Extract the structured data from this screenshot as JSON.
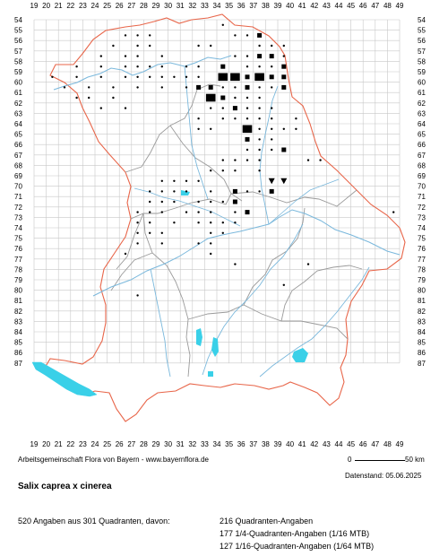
{
  "map": {
    "columns": [
      "19",
      "20",
      "21",
      "22",
      "23",
      "24",
      "25",
      "26",
      "27",
      "28",
      "29",
      "30",
      "31",
      "32",
      "33",
      "34",
      "35",
      "36",
      "37",
      "38",
      "39",
      "40",
      "41",
      "42",
      "43",
      "44",
      "45",
      "46",
      "47",
      "48",
      "49"
    ],
    "rows": [
      "54",
      "55",
      "56",
      "57",
      "58",
      "59",
      "60",
      "61",
      "62",
      "63",
      "64",
      "65",
      "66",
      "67",
      "68",
      "69",
      "70",
      "71",
      "72",
      "73",
      "74",
      "75",
      "76",
      "77",
      "78",
      "79",
      "80",
      "81",
      "82",
      "83",
      "84",
      "85",
      "86",
      "87"
    ],
    "colors": {
      "grid": "#c8c8c8",
      "state_border": "#e8664a",
      "district_border": "#9a9a9a",
      "rivers": "#7ab8dc",
      "lakes": "#3ad0e8",
      "symbols": "#000000"
    },
    "legend_symbols": {
      "quadrant": "large-square",
      "quarter_mtb": "small-square",
      "sixteenth_mtb": "dot",
      "historic": "triangle"
    },
    "records": {
      "dots": [
        [
          26,
          55
        ],
        [
          27,
          55
        ],
        [
          28,
          55
        ],
        [
          25,
          56
        ],
        [
          27,
          56
        ],
        [
          28,
          56
        ],
        [
          32,
          56
        ],
        [
          33,
          56
        ],
        [
          24,
          57
        ],
        [
          26,
          57
        ],
        [
          27,
          57
        ],
        [
          29,
          57
        ],
        [
          22,
          58
        ],
        [
          24,
          58
        ],
        [
          26,
          58
        ],
        [
          27,
          58
        ],
        [
          28,
          58
        ],
        [
          29,
          58
        ],
        [
          31,
          58
        ],
        [
          32,
          58
        ],
        [
          20,
          59
        ],
        [
          22,
          59
        ],
        [
          24,
          59
        ],
        [
          26,
          59
        ],
        [
          27,
          59
        ],
        [
          28,
          59
        ],
        [
          29,
          59
        ],
        [
          30,
          59
        ],
        [
          31,
          59
        ],
        [
          32,
          59
        ],
        [
          23,
          60
        ],
        [
          25,
          60
        ],
        [
          27,
          60
        ],
        [
          29,
          60
        ],
        [
          31,
          60
        ],
        [
          23,
          61
        ],
        [
          25,
          61
        ],
        [
          26,
          62
        ],
        [
          24,
          62
        ],
        [
          32,
          63
        ],
        [
          32,
          64
        ],
        [
          33,
          64
        ],
        [
          34,
          63
        ],
        [
          35,
          63
        ],
        [
          36,
          63
        ],
        [
          37,
          63
        ],
        [
          38,
          63
        ],
        [
          37,
          64
        ],
        [
          38,
          64
        ],
        [
          39,
          64
        ],
        [
          40,
          63
        ],
        [
          40,
          64
        ],
        [
          36,
          65
        ],
        [
          37,
          65
        ],
        [
          38,
          65
        ],
        [
          36,
          66
        ],
        [
          37,
          66
        ],
        [
          38,
          66
        ],
        [
          36,
          67
        ],
        [
          37,
          67
        ],
        [
          34,
          67
        ],
        [
          35,
          67
        ],
        [
          41,
          67
        ],
        [
          42,
          67
        ],
        [
          33,
          68
        ],
        [
          34,
          68
        ],
        [
          35,
          68
        ],
        [
          37,
          68
        ],
        [
          29,
          69
        ],
        [
          30,
          69
        ],
        [
          31,
          69
        ],
        [
          32,
          69
        ],
        [
          28,
          70
        ],
        [
          29,
          70
        ],
        [
          30,
          70
        ],
        [
          31,
          70
        ],
        [
          33,
          70
        ],
        [
          36,
          70
        ],
        [
          37,
          70
        ],
        [
          28,
          71
        ],
        [
          29,
          71
        ],
        [
          30,
          71
        ],
        [
          32,
          71
        ],
        [
          33,
          71
        ],
        [
          34,
          71
        ],
        [
          27,
          72
        ],
        [
          28,
          72
        ],
        [
          29,
          72
        ],
        [
          31,
          72
        ],
        [
          32,
          72
        ],
        [
          33,
          72
        ],
        [
          35,
          72
        ],
        [
          27,
          73
        ],
        [
          28,
          73
        ],
        [
          30,
          73
        ],
        [
          32,
          73
        ],
        [
          33,
          73
        ],
        [
          34,
          73
        ],
        [
          35,
          73
        ],
        [
          27,
          74
        ],
        [
          28,
          74
        ],
        [
          29,
          74
        ],
        [
          33,
          74
        ],
        [
          34,
          74
        ],
        [
          27,
          75
        ],
        [
          29,
          75
        ],
        [
          32,
          75
        ],
        [
          33,
          75
        ],
        [
          26,
          76
        ],
        [
          33,
          76
        ],
        [
          35,
          77
        ],
        [
          41,
          77
        ],
        [
          27,
          80
        ],
        [
          39,
          79
        ],
        [
          48,
          72
        ],
        [
          22,
          61
        ],
        [
          21,
          60
        ],
        [
          34,
          54
        ],
        [
          35,
          55
        ],
        [
          36,
          55
        ],
        [
          37,
          56
        ],
        [
          38,
          56
        ],
        [
          39,
          56
        ],
        [
          35,
          57
        ],
        [
          36,
          57
        ],
        [
          37,
          57
        ],
        [
          39,
          57
        ],
        [
          34,
          58
        ],
        [
          36,
          58
        ],
        [
          37,
          58
        ],
        [
          38,
          58
        ],
        [
          34,
          60
        ],
        [
          35,
          60
        ],
        [
          36,
          60
        ],
        [
          37,
          60
        ],
        [
          38,
          60
        ],
        [
          34,
          61
        ],
        [
          35,
          61
        ],
        [
          36,
          61
        ],
        [
          37,
          61
        ],
        [
          33,
          62
        ],
        [
          34,
          62
        ],
        [
          36,
          62
        ],
        [
          37,
          62
        ],
        [
          38,
          62
        ]
      ],
      "small_squares": [
        [
          35,
          59
        ],
        [
          36,
          59
        ],
        [
          37,
          59
        ],
        [
          38,
          59
        ],
        [
          39,
          59
        ],
        [
          34,
          59
        ],
        [
          33,
          60
        ],
        [
          39,
          60
        ],
        [
          32,
          60
        ],
        [
          34,
          61
        ],
        [
          33,
          61
        ],
        [
          37,
          57
        ],
        [
          38,
          57
        ],
        [
          39,
          58
        ],
        [
          36,
          64
        ],
        [
          36,
          65
        ],
        [
          39,
          66
        ],
        [
          38,
          70
        ],
        [
          35,
          70
        ],
        [
          36,
          72
        ],
        [
          35,
          71
        ],
        [
          36,
          60
        ],
        [
          35,
          62
        ],
        [
          34,
          58
        ],
        [
          37,
          55
        ]
      ],
      "large_squares": [
        [
          35,
          59
        ],
        [
          37,
          59
        ],
        [
          33,
          61
        ],
        [
          34,
          59
        ],
        [
          36,
          64
        ]
      ],
      "triangles": [
        [
          38,
          69
        ],
        [
          39,
          69
        ]
      ]
    }
  },
  "credit": "Arbeitsgemeinschaft Flora von Bayern - www.bayernflora.de",
  "scale": {
    "zero": "0",
    "max": "50 km"
  },
  "date": "Datenstand: 05.06.2025",
  "species": "Salix caprea x cinerea",
  "summary": "520 Angaben aus 301 Quadranten, davon:",
  "details": [
    "216 Quadranten-Angaben",
    "177 1/4-Quadranten-Angaben (1/16 MTB)",
    "127 1/16-Quadranten-Angaben (1/64 MTB)"
  ]
}
